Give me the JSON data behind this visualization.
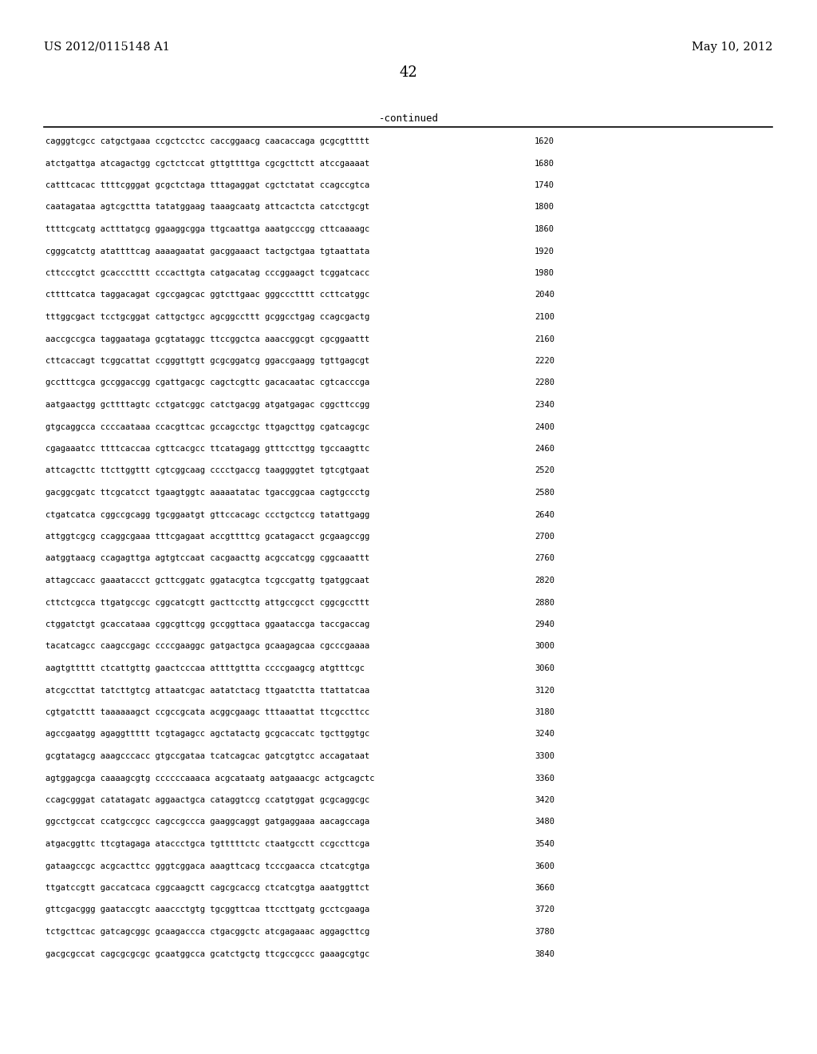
{
  "header_left": "US 2012/0115148 A1",
  "header_right": "May 10, 2012",
  "page_number": "42",
  "continued_label": "-continued",
  "background_color": "#ffffff",
  "text_color": "#000000",
  "sequence_lines": [
    [
      "cagggtcgcc catgctgaaa ccgctcctcc caccggaacg caacaccaga gcgcgttttt",
      "1620"
    ],
    [
      "atctgattga atcagactgg cgctctccat gttgttttga cgcgcttctt atccgaaaat",
      "1680"
    ],
    [
      "catttcacac ttttcgggat gcgctctaga tttagaggat cgctctatat ccagccgtca",
      "1740"
    ],
    [
      "caatagataa agtcgcttta tatatggaag taaagcaatg attcactcta catcctgcgt",
      "1800"
    ],
    [
      "ttttcgcatg actttatgcg ggaaggcgga ttgcaattga aaatgcccgg cttcaaaagc",
      "1860"
    ],
    [
      "cgggcatctg atattttcag aaaagaatat gacggaaact tactgctgaa tgtaattata",
      "1920"
    ],
    [
      "cttcccgtct gcaccctttt cccacttgta catgacatag cccggaagct tcggatcacc",
      "1980"
    ],
    [
      "cttttcatca taggacagat cgccgagcac ggtcttgaac gggccctttt ccttcatggc",
      "2040"
    ],
    [
      "tttggcgact tcctgcggat cattgctgcc agcggccttt gcggcctgag ccagcgactg",
      "2100"
    ],
    [
      "aaccgccgca taggaataga gcgtataggc ttccggctca aaaccggcgt cgcggaattt",
      "2160"
    ],
    [
      "cttcaccagt tcggcattat ccgggttgtt gcgcggatcg ggaccgaagg tgttgagcgt",
      "2220"
    ],
    [
      "gcctttcgca gccggaccgg cgattgacgc cagctcgttc gacacaatac cgtcacccga",
      "2280"
    ],
    [
      "aatgaactgg gcttttagtc cctgatcggc catctgacgg atgatgagac cggcttccgg",
      "2340"
    ],
    [
      "gtgcaggcca ccccaataaa ccacgttcac gccagcctgc ttgagcttgg cgatcagcgc",
      "2400"
    ],
    [
      "cgagaaatcc ttttcaccaa cgttcacgcc ttcatagagg gtttccttgg tgccaagttc",
      "2460"
    ],
    [
      "attcagcttc ttcttggttt cgtcggcaag cccctgaccg taaggggtet tgtcgtgaat",
      "2520"
    ],
    [
      "gacggcgatc ttcgcatcct tgaagtggtc aaaaatatac tgaccggcaa cagtgccctg",
      "2580"
    ],
    [
      "ctgatcatca cggccgcagg tgcggaatgt gttccacagc ccctgctccg tatattgagg",
      "2640"
    ],
    [
      "attggtcgcg ccaggcgaaa tttcgagaat accgttttcg gcatagacct gcgaagccgg",
      "2700"
    ],
    [
      "aatggtaacg ccagagttga agtgtccaat cacgaacttg acgccatcgg cggcaaattt",
      "2760"
    ],
    [
      "attagccacc gaaataccct gcttcggatc ggatacgtca tcgccgattg tgatggcaat",
      "2820"
    ],
    [
      "cttctcgcca ttgatgccgc cggcatcgtt gacttccttg attgccgcct cggcgccttt",
      "2880"
    ],
    [
      "ctggatctgt gcaccataaa cggcgttcgg gccggttaca ggaataccga taccgaccag",
      "2940"
    ],
    [
      "tacatcagcc caagccgagc ccccgaaggc gatgactgca gcaagagcaa cgcccgaaaa",
      "3000"
    ],
    [
      "aagtgttttt ctcattgttg gaactcccaa attttgttta ccccgaagcg atgtttcgc",
      "3060"
    ],
    [
      "atcgccttat tatcttgtcg attaatcgac aatatctacg ttgaatctta ttattatcaa",
      "3120"
    ],
    [
      "cgtgatcttt taaaaaagct ccgccgcata acggcgaagc tttaaattat ttcgccttcc",
      "3180"
    ],
    [
      "agccgaatgg agaggttttt tcgtagagcc agctatactg gcgcaccatc tgcttggtgc",
      "3240"
    ],
    [
      "gcgtatagcg aaagcccacc gtgccgataa tcatcagcac gatcgtgtcc accagataat",
      "3300"
    ],
    [
      "agtggagcga caaaagcgtg ccccccaaaca acgcataatg aatgaaacgc actgcagctc",
      "3360"
    ],
    [
      "ccagcgggat catatagatc aggaactgca cataggtccg ccatgtggat gcgcaggcgc",
      "3420"
    ],
    [
      "ggcctgccat ccatgccgcc cagccgccca gaaggcaggt gatgaggaaa aacagccaga",
      "3480"
    ],
    [
      "atgacggttc ttcgtagaga ataccctgca tgtttttctc ctaatgcctt ccgccttcga",
      "3540"
    ],
    [
      "gataagccgc acgcacttcc gggtcggaca aaagttcacg tcccgaacca ctcatcgtga",
      "3600"
    ],
    [
      "ttgatccgtt gaccatcaca cggcaagctt cagcgcaccg ctcatcgtga aaatggttct",
      "3660"
    ],
    [
      "gttcgacggg gaataccgtc aaaccctgtg tgcggttcaa ttccttgatg gcctcgaaga",
      "3720"
    ],
    [
      "tctgcttcac gatcagcggc gcaagaccca ctgacggctc atcgagaaac aggagcttcg",
      "3780"
    ],
    [
      "gacgcgccat cagcgcgcgc gcaatggcca gcatctgctg ttcgccgccc gaaagcgtgc",
      "3840"
    ]
  ]
}
